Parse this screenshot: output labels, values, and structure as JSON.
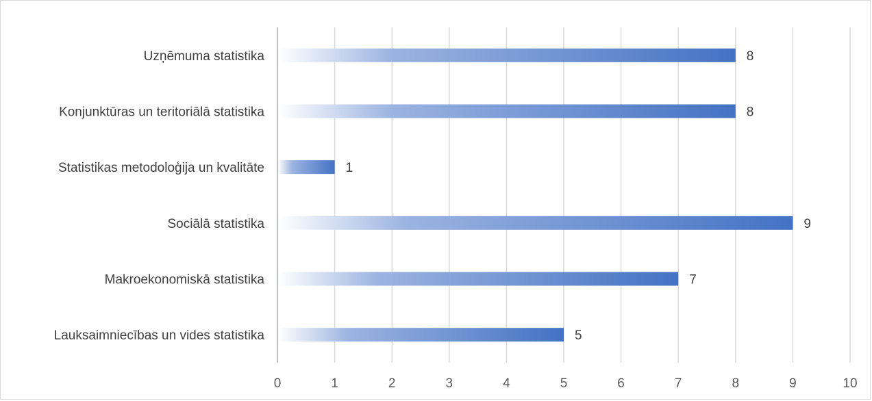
{
  "chart_data": {
    "type": "bar",
    "orientation": "horizontal",
    "categories": [
      "Uzņēmuma statistika",
      "Konjunktūras un teritoriālā statistika",
      "Statistikas metodoloģija un kvalitāte",
      "Sociālā statistika",
      "Makroekonomiskā statistika",
      "Lauksaimniecības un vides statistika"
    ],
    "values": [
      8,
      8,
      1,
      9,
      7,
      5
    ],
    "xlim": [
      0,
      10
    ],
    "x_ticks": [
      "0",
      "1",
      "2",
      "3",
      "4",
      "5",
      "6",
      "7",
      "8",
      "9",
      "10"
    ],
    "title": "",
    "xlabel": "",
    "ylabel": "",
    "grid": true,
    "data_labels": true,
    "bar_color_start": "#ffffff",
    "bar_color_end": "#4472c4",
    "gridline_color": "#d9d9d9"
  }
}
